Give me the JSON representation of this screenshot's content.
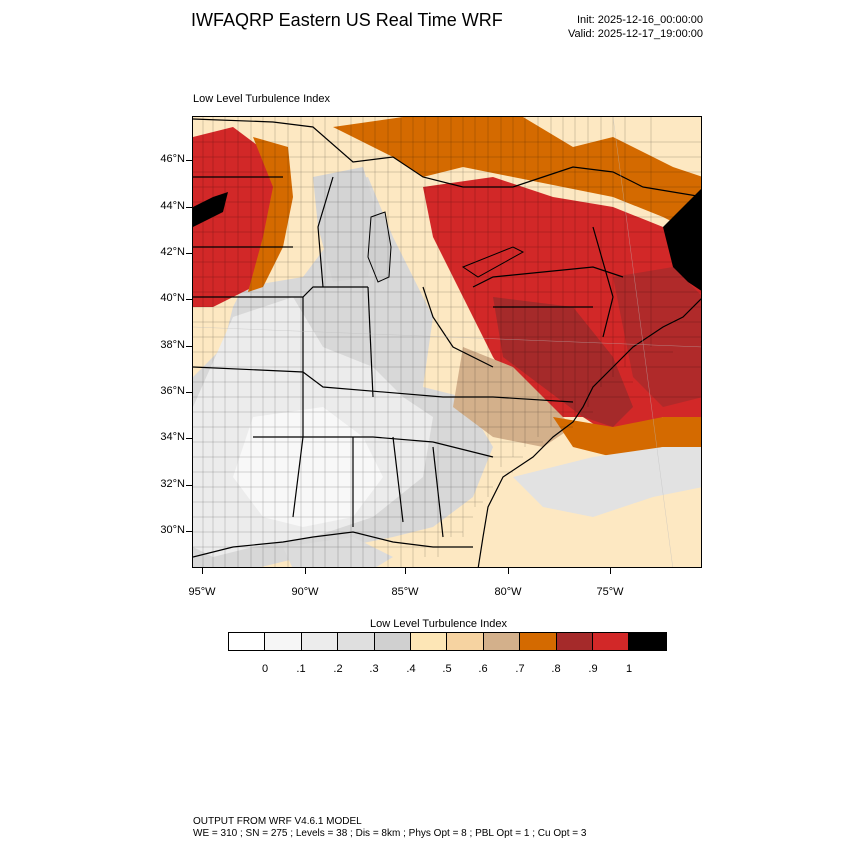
{
  "header": {
    "title": "IWFAQRP Eastern US Real Time WRF",
    "init": "Init: 2025-12-16_00:00:00",
    "valid": "Valid: 2025-12-17_19:00:00"
  },
  "map": {
    "field_title": "Low Level Turbulence Index",
    "lat_labels": [
      "46°N",
      "44°N",
      "42°N",
      "40°N",
      "38°N",
      "36°N",
      "34°N",
      "32°N",
      "30°N"
    ],
    "lon_labels": [
      "95°W",
      "90°W",
      "85°W",
      "80°W",
      "75°W"
    ]
  },
  "colorbar": {
    "title": "Low Level Turbulence Index",
    "colors": [
      "#ffffff",
      "#f6f6f6",
      "#ececec",
      "#dfdfdf",
      "#d0d0d0",
      "#fde6b6",
      "#f6d3a1",
      "#d3b08b",
      "#d46a00",
      "#a52a2a",
      "#d22828",
      "#000000"
    ],
    "labels": [
      "0",
      ".1",
      ".2",
      ".3",
      ".4",
      ".5",
      ".6",
      ".7",
      ".8",
      ".9",
      "1"
    ]
  },
  "footer": {
    "line1": "OUTPUT FROM WRF V4.6.1 MODEL",
    "line2": "WE = 310 ; SN = 275 ; Levels = 38 ; Dis = 8km ; Phys Opt = 8 ; PBL Opt = 1 ; Cu Opt = 3"
  }
}
